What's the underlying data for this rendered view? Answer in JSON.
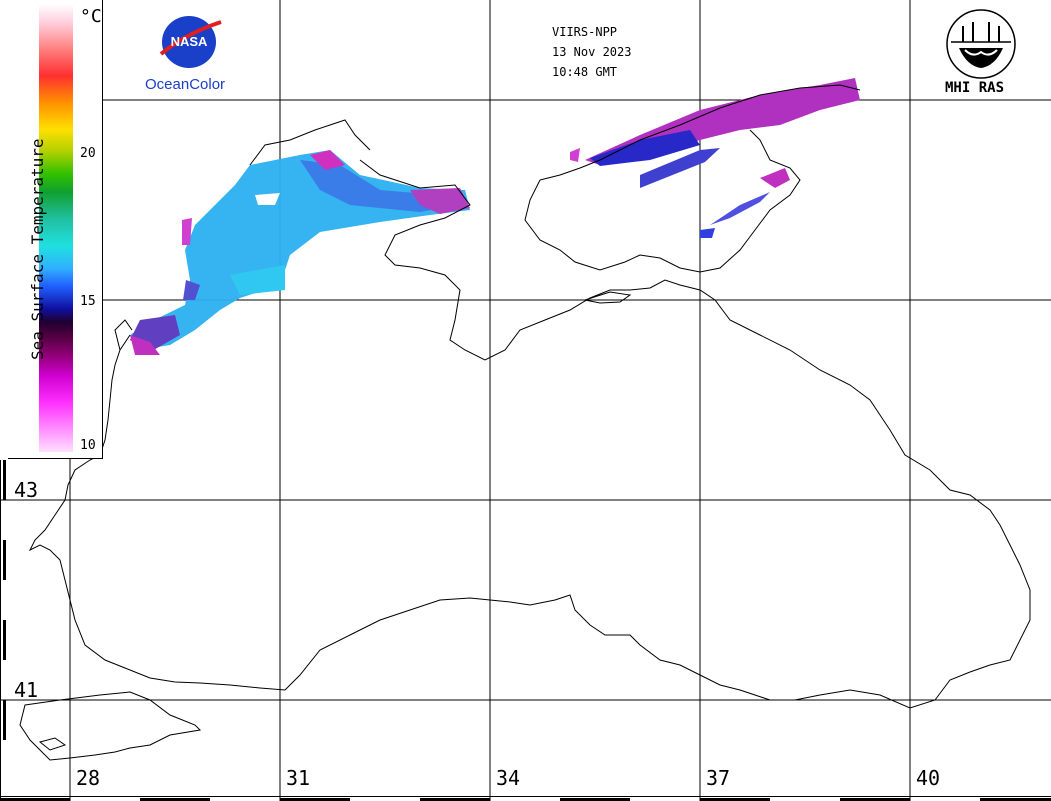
{
  "header": {
    "satellite": "VIIRS-NPP",
    "date": "13 Nov 2023",
    "time": "10:48 GMT"
  },
  "logos": {
    "nasa_text": "NASA",
    "oceancolor": "OceanColor",
    "mhi": "MHI RAS"
  },
  "legend": {
    "title": "Sea Surface Temperature",
    "unit": "°C",
    "ticks": [
      "20",
      "15",
      "10"
    ]
  },
  "latitude_labels": [
    "43",
    "41"
  ],
  "longitude_labels": [
    "28",
    "31",
    "34",
    "37",
    "40"
  ],
  "colors": {
    "warm_sst": "#2ab0f0",
    "cool_sst": "#2020c0",
    "coldest_sst": "#c020c0",
    "oceancolor_text": "#1a3fc8"
  }
}
